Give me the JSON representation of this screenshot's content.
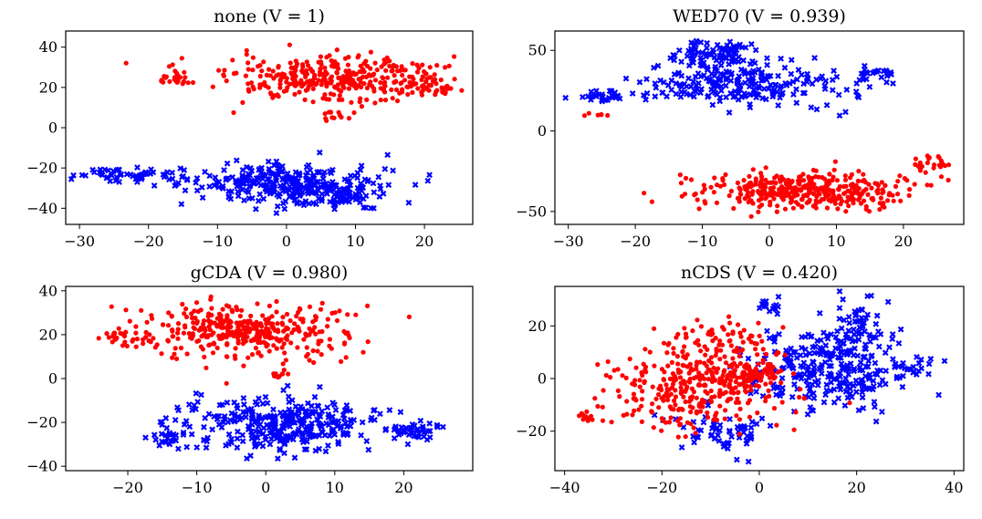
{
  "chart_data": [
    {
      "type": "scatter",
      "title": "none (V = 1)",
      "xlim": [
        -32,
        27
      ],
      "ylim": [
        -48,
        48
      ],
      "xticks": [
        -30,
        -20,
        -10,
        0,
        10,
        20
      ],
      "yticks": [
        -40,
        -20,
        0,
        20,
        40
      ],
      "xtick_labels": [
        "−30",
        "−20",
        "−10",
        "0",
        "10",
        "20"
      ],
      "ytick_labels": [
        "−40",
        "−20",
        "0",
        "20",
        "40"
      ],
      "xlabel": "",
      "ylabel": "",
      "grid": false,
      "series": [
        {
          "name": "red",
          "color": "#ff0000",
          "marker": "circle",
          "clusters": [
            {
              "cx": 7.5,
              "cy": 24,
              "rx": 14,
              "ry": 10,
              "n": 360
            },
            {
              "cx": -16,
              "cy": 24,
              "rx": 2.5,
              "ry": 4,
              "n": 24
            },
            {
              "cx": 7.5,
              "cy": 6,
              "rx": 2.5,
              "ry": 3,
              "n": 14
            },
            {
              "cx": 21,
              "cy": 20,
              "rx": 2.5,
              "ry": 6,
              "n": 20
            }
          ]
        },
        {
          "name": "blue",
          "color": "#0000ff",
          "marker": "x",
          "clusters": [
            {
              "cx": 0,
              "cy": -28,
              "rx": 12,
              "ry": 9,
              "n": 300
            },
            {
              "cx": -22,
              "cy": -24,
              "rx": 8,
              "ry": 3.5,
              "n": 60
            },
            {
              "cx": 8,
              "cy": -34,
              "rx": 5,
              "ry": 6,
              "n": 50
            }
          ]
        }
      ]
    },
    {
      "type": "scatter",
      "title": "WED70 (V = 0.939)",
      "xlim": [
        -32,
        29
      ],
      "ylim": [
        -58,
        62
      ],
      "xticks": [
        -30,
        -20,
        -10,
        0,
        10,
        20
      ],
      "yticks": [
        -50,
        0,
        50
      ],
      "xtick_labels": [
        "−30",
        "−20",
        "−10",
        "0",
        "10",
        "20"
      ],
      "ytick_labels": [
        "−50",
        "0",
        "50"
      ],
      "xlabel": "",
      "ylabel": "",
      "grid": false,
      "series": [
        {
          "name": "blue",
          "color": "#0000ff",
          "marker": "x",
          "clusters": [
            {
              "cx": -7,
              "cy": 48,
              "rx": 5,
              "ry": 8,
              "n": 90
            },
            {
              "cx": -4,
              "cy": 30,
              "rx": 13,
              "ry": 13,
              "n": 230
            },
            {
              "cx": -25,
              "cy": 22,
              "rx": 4,
              "ry": 4,
              "n": 30
            },
            {
              "cx": 15,
              "cy": 35,
              "rx": 3,
              "ry": 8,
              "n": 25
            }
          ]
        },
        {
          "name": "red",
          "color": "#ff0000",
          "marker": "circle",
          "clusters": [
            {
              "cx": 5,
              "cy": -37,
              "rx": 14,
              "ry": 11,
              "n": 380
            },
            {
              "cx": 24,
              "cy": -20,
              "rx": 3,
              "ry": 6,
              "n": 25
            },
            {
              "cx": -26,
              "cy": 10,
              "rx": 1.5,
              "ry": 1,
              "n": 6
            }
          ]
        }
      ]
    },
    {
      "type": "scatter",
      "title": "gCDA (V = 0.980)",
      "xlim": [
        -29,
        30
      ],
      "ylim": [
        -42,
        42
      ],
      "xticks": [
        -20,
        -10,
        0,
        10,
        20
      ],
      "yticks": [
        -40,
        -20,
        0,
        20,
        40
      ],
      "xtick_labels": [
        "−20",
        "−10",
        "0",
        "10",
        "20"
      ],
      "ytick_labels": [
        "−40",
        "−20",
        "0",
        "20",
        "40"
      ],
      "xlabel": "",
      "ylabel": "",
      "grid": false,
      "series": [
        {
          "name": "red",
          "color": "#ff0000",
          "marker": "circle",
          "clusters": [
            {
              "cx": -3,
              "cy": 22,
              "rx": 13,
              "ry": 11,
              "n": 380
            },
            {
              "cx": -22,
              "cy": 18,
              "rx": 3,
              "ry": 3,
              "n": 18
            },
            {
              "cx": 2,
              "cy": 2,
              "rx": 1.5,
              "ry": 1.5,
              "n": 10
            }
          ]
        },
        {
          "name": "blue",
          "color": "#0000ff",
          "marker": "x",
          "clusters": [
            {
              "cx": 3,
              "cy": -21,
              "rx": 13,
              "ry": 11,
              "n": 330
            },
            {
              "cx": 22,
              "cy": -24,
              "rx": 4,
              "ry": 3.5,
              "n": 40
            },
            {
              "cx": -14,
              "cy": -27,
              "rx": 3,
              "ry": 5,
              "n": 25
            }
          ]
        }
      ]
    },
    {
      "type": "scatter",
      "title": "nCDS (V = 0.420)",
      "xlim": [
        -42,
        42
      ],
      "ylim": [
        -35,
        35
      ],
      "xticks": [
        -40,
        -20,
        0,
        20,
        40
      ],
      "yticks": [
        -20,
        0,
        20
      ],
      "xtick_labels": [
        "−40",
        "−20",
        "0",
        "20",
        "40"
      ],
      "ytick_labels": [
        "−20",
        "0",
        "20"
      ],
      "xlabel": "",
      "ylabel": "",
      "grid": false,
      "series": [
        {
          "name": "blue",
          "color": "#0000ff",
          "marker": "x",
          "clusters": [
            {
              "cx": 14,
              "cy": 4,
              "rx": 15,
              "ry": 14,
              "n": 300
            },
            {
              "cx": 20,
              "cy": 23,
              "rx": 4,
              "ry": 6,
              "n": 35
            },
            {
              "cx": 2,
              "cy": 28,
              "rx": 2,
              "ry": 3,
              "n": 15
            },
            {
              "cx": -8,
              "cy": -20,
              "rx": 8,
              "ry": 8,
              "n": 60
            },
            {
              "cx": 31,
              "cy": 5,
              "rx": 4,
              "ry": 4,
              "n": 20
            }
          ]
        },
        {
          "name": "red",
          "color": "#ff0000",
          "marker": "circle",
          "clusters": [
            {
              "cx": -14,
              "cy": -4,
              "rx": 15,
              "ry": 15,
              "n": 320
            },
            {
              "cx": -1,
              "cy": 1,
              "rx": 5,
              "ry": 5,
              "n": 90
            },
            {
              "cx": -35,
              "cy": -14,
              "rx": 2,
              "ry": 4,
              "n": 12
            },
            {
              "cx": -6,
              "cy": 14,
              "rx": 10,
              "ry": 7,
              "n": 60
            }
          ]
        }
      ]
    }
  ]
}
